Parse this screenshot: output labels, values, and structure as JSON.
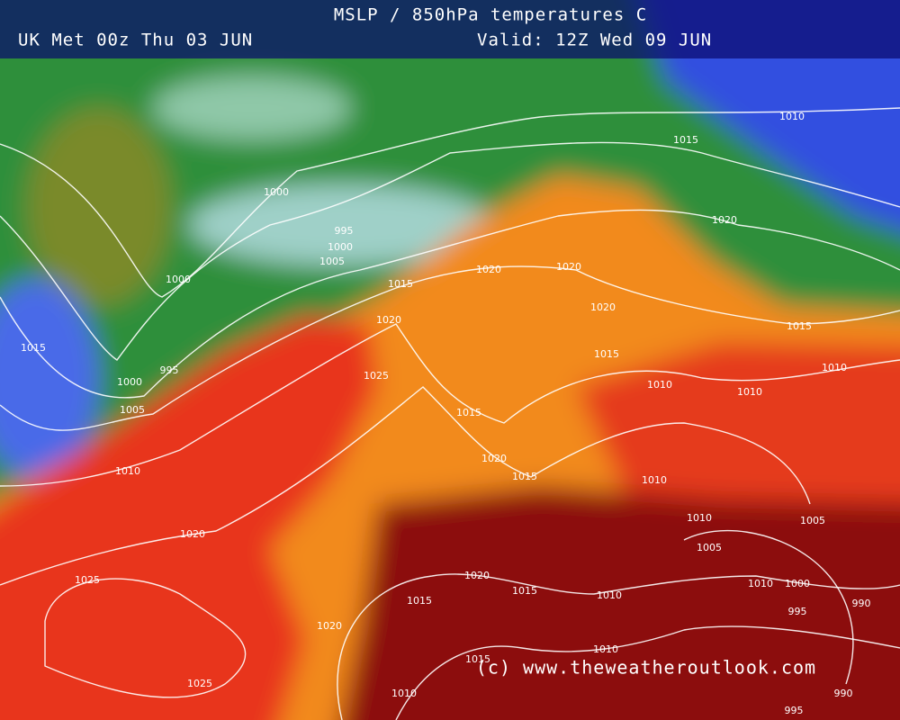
{
  "header": {
    "title": "MSLP / 850hPa temperatures C",
    "run": "UK Met 00z Thu 03 JUN",
    "valid": "Valid: 12Z Wed 09 JUN"
  },
  "watermark": "(c) www.theweatheroutlook.com",
  "isobar_labels": [
    "1010",
    "1015",
    "1020",
    "1000",
    "995",
    "1000",
    "1005",
    "1015",
    "1020",
    "1020",
    "1020",
    "1020",
    "1015",
    "1015",
    "1025",
    "1010",
    "1010",
    "1010",
    "1015",
    "1020",
    "1015",
    "1010",
    "1010",
    "1005",
    "1005",
    "1010",
    "1000",
    "995",
    "990",
    "990",
    "995",
    "1020",
    "1015",
    "1010",
    "1010",
    "1015",
    "1015",
    "1010",
    "1020",
    "1025",
    "1025",
    "1020",
    "1010",
    "1005",
    "1000",
    "995",
    "1015",
    "1000"
  ]
}
